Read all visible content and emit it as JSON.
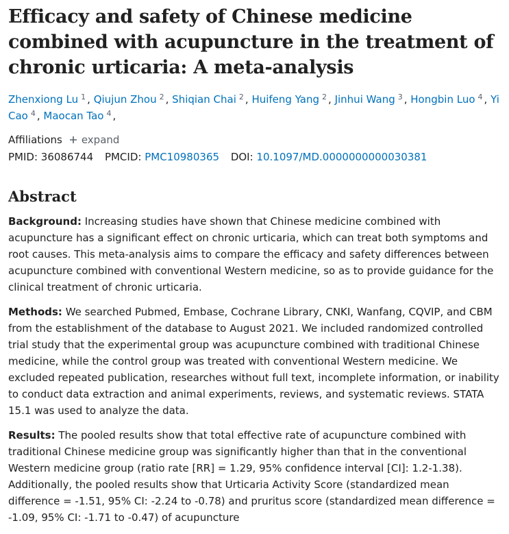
{
  "title": "Efficacy and safety of Chinese medicine combined with acupuncture in the treatment of chronic urticaria: A meta-analysis",
  "author_separator": ",",
  "authors": [
    {
      "name": "Zhenxiong Lu",
      "aff": 1
    },
    {
      "name": "Qiujun Zhou",
      "aff": 2
    },
    {
      "name": "Shiqian Chai",
      "aff": 2
    },
    {
      "name": "Huifeng Yang",
      "aff": 2
    },
    {
      "name": "Jinhui Wang",
      "aff": 3
    },
    {
      "name": "Hongbin Luo",
      "aff": 4
    },
    {
      "name": "Yi Cao",
      "aff": 4
    },
    {
      "name": "Maocan Tao",
      "aff": 4
    }
  ],
  "affiliations": {
    "label": "Affiliations",
    "toggle": "expand"
  },
  "ids": {
    "pmid_label": "PMID:",
    "pmid": "36086744",
    "pmcid_label": "PMCID:",
    "pmcid": "PMC10980365",
    "doi_label": "DOI:",
    "doi": "10.1097/MD.0000000000030381"
  },
  "abstract": {
    "heading": "Abstract",
    "sections": [
      {
        "label": "Background:",
        "text": "Increasing studies have shown that Chinese medicine combined with acupuncture has a significant effect on chronic urticaria, which can treat both symptoms and root causes. This meta-analysis aims to compare the efficacy and safety differences between acupuncture combined with conventional Western medicine, so as to provide guidance for the clinical treatment of chronic urticaria."
      },
      {
        "label": "Methods:",
        "text": "We searched Pubmed, Embase, Cochrane Library, CNKI, Wanfang, CQVIP, and CBM from the establishment of the database to August 2021. We included randomized controlled trial study that the experimental group was acupuncture combined with traditional Chinese medicine, while the control group was treated with conventional Western medicine. We excluded repeated publication, researches without full text, incomplete information, or inability to conduct data extraction and animal experiments, reviews, and systematic reviews. STATA 15.1 was used to analyze the data."
      },
      {
        "label": "Results:",
        "text": "The pooled results show that total effective rate of acupuncture combined with traditional Chinese medicine group was significantly higher than that in the conventional Western medicine group (ratio rate [RR] = 1.29, 95% confidence interval [CI]: 1.2-1.38). Additionally, the pooled results show that Urticaria Activity Score (standardized mean difference = -1.51, 95% CI: -2.24 to -0.78) and pruritus score (standardized mean difference = -1.09, 95% CI: -1.71 to -0.47) of acupuncture"
      }
    ]
  }
}
